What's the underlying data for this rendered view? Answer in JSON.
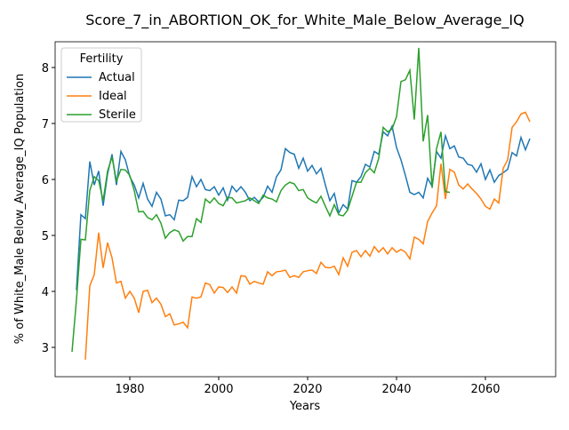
{
  "chart_data": {
    "type": "line",
    "title": "Score_7_in_ABORTION_OK_for_White_Male_Below_Average_IQ",
    "x_label": "Years",
    "y_label": "% of White_Male Below_Average_IQ Population",
    "legend_title": "Fertility",
    "legend_position": "upper left",
    "x": [
      1967,
      1968,
      1969,
      1970,
      1971,
      1972,
      1973,
      1974,
      1975,
      1976,
      1977,
      1978,
      1979,
      1980,
      1981,
      1982,
      1983,
      1984,
      1985,
      1986,
      1987,
      1988,
      1989,
      1990,
      1991,
      1992,
      1993,
      1994,
      1995,
      1996,
      1997,
      1998,
      1999,
      2000,
      2001,
      2002,
      2003,
      2004,
      2005,
      2006,
      2007,
      2008,
      2009,
      2010,
      2011,
      2012,
      2013,
      2014,
      2015,
      2016,
      2017,
      2018,
      2019,
      2020,
      2021,
      2022,
      2023,
      2024,
      2025,
      2026,
      2027,
      2028,
      2029,
      2030,
      2031,
      2032,
      2033,
      2034,
      2035,
      2036,
      2037,
      2038,
      2039,
      2040,
      2041,
      2042,
      2043,
      2044,
      2045,
      2046,
      2047,
      2048,
      2049,
      2050,
      2051,
      2052,
      2053,
      2054,
      2055,
      2056,
      2057,
      2058,
      2059,
      2060,
      2061,
      2062,
      2063,
      2064,
      2065,
      2066,
      2067,
      2068,
      2069,
      2070
    ],
    "series": [
      {
        "name": "Actual",
        "color": "#1f77b4",
        "values": [
          null,
          4.02,
          5.37,
          5.3,
          6.32,
          5.9,
          6.15,
          5.53,
          6.1,
          6.45,
          5.9,
          6.5,
          6.35,
          6.05,
          5.9,
          5.67,
          5.93,
          5.65,
          5.52,
          5.77,
          5.65,
          5.35,
          5.37,
          5.28,
          5.63,
          5.62,
          5.68,
          6.05,
          5.87,
          6.0,
          5.82,
          5.8,
          5.87,
          5.72,
          5.85,
          5.63,
          5.88,
          5.78,
          5.87,
          5.77,
          5.62,
          5.68,
          5.6,
          5.68,
          5.88,
          5.77,
          6.05,
          6.17,
          6.55,
          6.48,
          6.45,
          6.2,
          6.38,
          6.15,
          6.25,
          6.1,
          6.2,
          5.9,
          5.62,
          5.75,
          5.4,
          5.55,
          5.47,
          5.98,
          5.95,
          6.05,
          6.27,
          6.22,
          6.5,
          6.45,
          6.85,
          6.78,
          6.95,
          6.57,
          6.35,
          6.07,
          5.77,
          5.73,
          5.77,
          5.67,
          6.02,
          5.88,
          6.5,
          6.38,
          6.78,
          6.55,
          6.6,
          6.4,
          6.38,
          6.27,
          6.25,
          6.13,
          6.28,
          6.0,
          6.17,
          5.95,
          6.07,
          6.12,
          6.18,
          6.48,
          6.42,
          6.75,
          6.53,
          6.73
        ]
      },
      {
        "name": "Ideal",
        "color": "#ff7f0e",
        "values": [
          null,
          null,
          null,
          2.78,
          4.1,
          4.3,
          5.05,
          4.42,
          4.87,
          4.6,
          4.15,
          4.18,
          3.88,
          4.0,
          3.88,
          3.62,
          4.0,
          4.02,
          3.8,
          3.88,
          3.77,
          3.55,
          3.6,
          3.4,
          3.42,
          3.45,
          3.35,
          3.9,
          3.88,
          3.9,
          4.15,
          4.12,
          3.97,
          4.08,
          4.07,
          3.98,
          4.08,
          3.97,
          4.28,
          4.27,
          4.13,
          4.18,
          4.15,
          4.13,
          4.35,
          4.28,
          4.35,
          4.36,
          4.38,
          4.25,
          4.28,
          4.25,
          4.35,
          4.37,
          4.38,
          4.32,
          4.52,
          4.43,
          4.42,
          4.45,
          4.3,
          4.6,
          4.45,
          4.7,
          4.73,
          4.62,
          4.73,
          4.63,
          4.8,
          4.7,
          4.78,
          4.67,
          4.78,
          4.7,
          4.75,
          4.7,
          4.58,
          4.97,
          4.93,
          4.85,
          5.25,
          5.4,
          5.53,
          6.28,
          5.65,
          6.18,
          6.13,
          5.9,
          5.83,
          5.92,
          5.83,
          5.75,
          5.65,
          5.52,
          5.47,
          5.65,
          5.58,
          6.2,
          6.35,
          6.93,
          7.03,
          7.17,
          7.2,
          7.03
        ]
      },
      {
        "name": "Sterile",
        "color": "#2ca02c",
        "values": [
          2.92,
          3.85,
          4.93,
          4.92,
          5.8,
          6.05,
          5.98,
          5.62,
          6.15,
          6.4,
          5.97,
          6.18,
          6.17,
          6.07,
          5.8,
          5.42,
          5.43,
          5.32,
          5.28,
          5.37,
          5.22,
          4.95,
          5.05,
          5.1,
          5.07,
          4.9,
          4.98,
          4.98,
          5.3,
          5.23,
          5.65,
          5.58,
          5.67,
          5.57,
          5.53,
          5.68,
          5.67,
          5.58,
          5.6,
          5.62,
          5.67,
          5.62,
          5.57,
          5.72,
          5.67,
          5.65,
          5.6,
          5.8,
          5.9,
          5.95,
          5.92,
          5.8,
          5.82,
          5.67,
          5.62,
          5.58,
          5.7,
          5.52,
          5.35,
          5.55,
          5.37,
          5.35,
          5.45,
          5.7,
          5.95,
          5.95,
          6.12,
          6.2,
          6.12,
          6.38,
          6.93,
          6.85,
          6.9,
          7.12,
          7.75,
          7.78,
          7.95,
          7.07,
          8.35,
          6.68,
          7.15,
          5.85,
          6.55,
          6.85,
          5.78,
          5.77,
          null,
          null,
          null,
          null,
          null,
          null,
          null,
          null,
          null,
          null,
          null,
          null,
          null,
          null,
          null,
          null,
          null,
          null
        ]
      }
    ],
    "xlim": [
      1963.2,
      2075.8
    ],
    "ylim": [
      2.476,
      8.46
    ],
    "xticks": [
      1980,
      2000,
      2020,
      2040,
      2060
    ],
    "yticks": [
      3,
      4,
      5,
      6,
      7,
      8
    ]
  }
}
